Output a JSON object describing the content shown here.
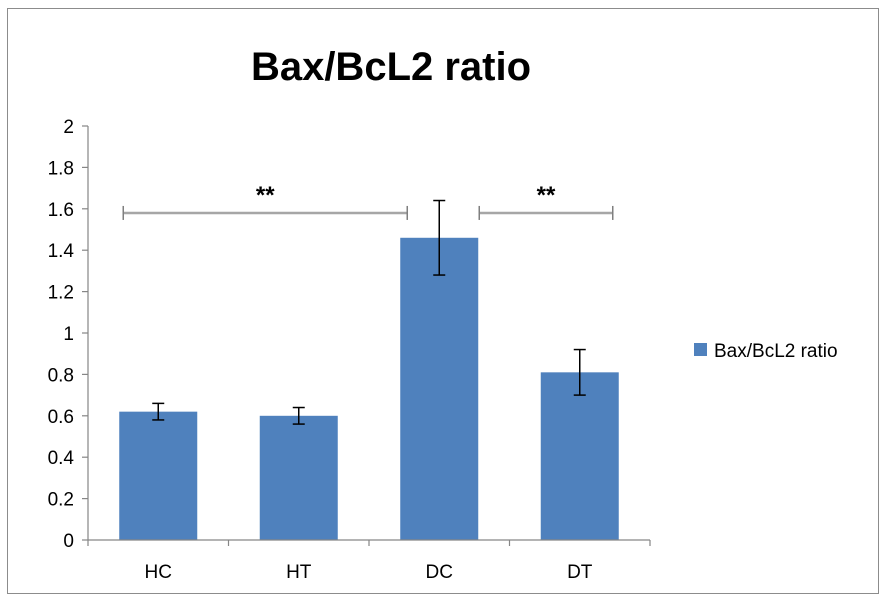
{
  "chart_data": {
    "type": "bar",
    "title": "Bax/BcL2 ratio",
    "xlabel": "",
    "ylabel": "",
    "categories": [
      "HC",
      "HT",
      "DC",
      "DT"
    ],
    "series": [
      {
        "name": "Bax/BcL2 ratio",
        "values": [
          0.62,
          0.6,
          1.46,
          0.81
        ],
        "error": [
          0.04,
          0.04,
          0.18,
          0.11
        ],
        "color": "#4f81bd"
      }
    ],
    "ylim": [
      0,
      2
    ],
    "yticks": [
      "0",
      "0.2",
      "0.4",
      "0.6",
      "0.8",
      "1",
      "1.2",
      "1.4",
      "1.6",
      "1.8",
      "2"
    ],
    "grid": false,
    "legend": "right",
    "significance": [
      {
        "from": "HC",
        "to": "DC",
        "y": 1.58,
        "label": "**"
      },
      {
        "from": "DC",
        "to": "DT",
        "y": 1.58,
        "label": "**"
      }
    ]
  }
}
